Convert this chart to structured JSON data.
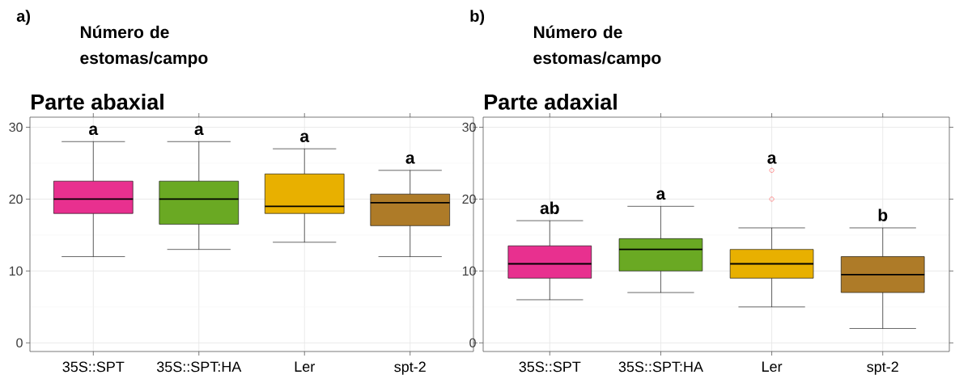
{
  "chart_data": [
    {
      "type": "box",
      "title": "Parte abaxial",
      "ylabel": "Número de estomas/campo",
      "categories": [
        "35S::SPT",
        "35S::SPT:HA",
        "Ler",
        "spt-2"
      ],
      "colors": [
        "#e8308f",
        "#6aa923",
        "#e8b000",
        "#ae7b28"
      ],
      "boxes": [
        {
          "low": 12,
          "q1": 18,
          "median": 20,
          "q3": 22.5,
          "high": 28
        },
        {
          "low": 13,
          "q1": 16.5,
          "median": 20,
          "q3": 22.5,
          "high": 28
        },
        {
          "low": 14,
          "q1": 18,
          "median": 19,
          "q3": 23.5,
          "high": 27
        },
        {
          "low": 12,
          "q1": 16.3,
          "median": 19.5,
          "q3": 20.7,
          "high": 24
        }
      ],
      "ylim": [
        -1.2,
        31.4
      ],
      "yticks": [
        0,
        10,
        20,
        30
      ],
      "grid": true,
      "annotations": [
        "a)",
        "a",
        "a",
        "a",
        "a"
      ]
    },
    {
      "type": "box",
      "title": "Parte adaxial",
      "ylabel": "Número de estomas/campo",
      "categories": [
        "35S::SPT",
        "35S::SPT:HA",
        "Ler",
        "spt-2"
      ],
      "colors": [
        "#e8308f",
        "#6aa923",
        "#e8b000",
        "#ae7b28"
      ],
      "boxes": [
        {
          "low": 6,
          "q1": 9,
          "median": 11,
          "q3": 13.5,
          "high": 17
        },
        {
          "low": 7,
          "q1": 10,
          "median": 13,
          "q3": 14.5,
          "high": 19
        },
        {
          "low": 5,
          "q1": 9,
          "median": 11,
          "q3": 13,
          "high": 16,
          "outliers": [
            20,
            24
          ]
        },
        {
          "low": 2,
          "q1": 7,
          "median": 9.5,
          "q3": 12,
          "high": 16
        }
      ],
      "ylim": [
        -1.2,
        31.4
      ],
      "yticks": [
        0,
        10,
        20,
        30
      ],
      "grid": true,
      "annotations": [
        "b)",
        "ab",
        "a",
        "a",
        "b"
      ]
    }
  ]
}
